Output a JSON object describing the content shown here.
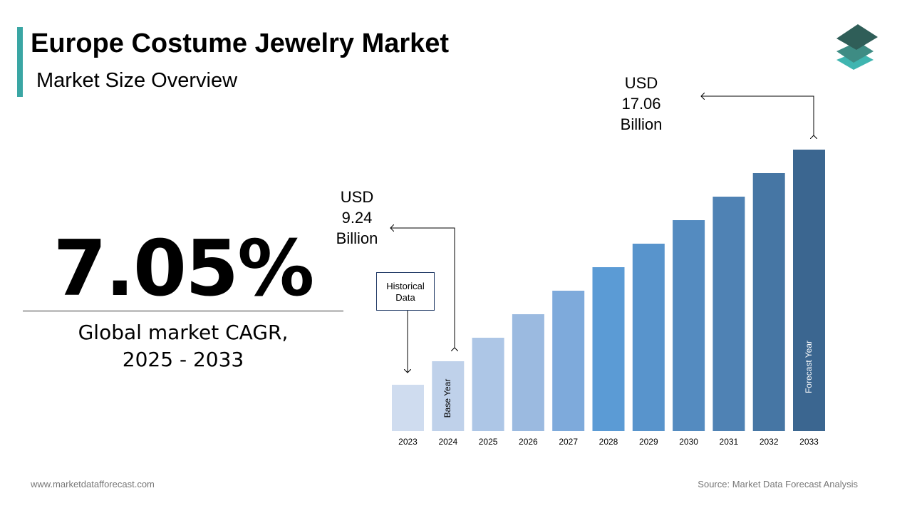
{
  "header": {
    "title": "Europe Costume Jewelry Market",
    "subtitle": "Market Size Overview"
  },
  "kpi": {
    "value": "7.05%",
    "caption_line1": "Global market CAGR,",
    "caption_line2": "2025 - 2033"
  },
  "annotations": {
    "start": {
      "l1": "USD",
      "l2": "9.24",
      "l3": "Billion"
    },
    "end": {
      "l1": "USD",
      "l2": "17.06",
      "l3": "Billion"
    },
    "historical": {
      "l1": "Historical",
      "l2": "Data"
    },
    "base_year": "Base Year",
    "forecast_year": "Forecast Year"
  },
  "footer": {
    "website": "www.marketdatafforecast.com",
    "source": "Source: Market Data Forecast Analysis"
  },
  "colors": {
    "accent": "#3aa6a4",
    "bars": [
      "#cfdcef",
      "#bfd1ea",
      "#adc6e6",
      "#9bbae0",
      "#7eaadb",
      "#5b9bd5",
      "#5894cc",
      "#548bc0",
      "#4f82b4",
      "#4676a4",
      "#3b6690"
    ]
  },
  "chart_data": {
    "type": "bar",
    "title": "",
    "xlabel": "",
    "ylabel": "",
    "categories": [
      "2023",
      "2024",
      "2025",
      "2026",
      "2027",
      "2028",
      "2029",
      "2030",
      "2031",
      "2032",
      "2033"
    ],
    "values": [
      null,
      9.24,
      null,
      null,
      null,
      null,
      null,
      null,
      null,
      null,
      17.06
    ],
    "unit": "USD Billion",
    "grid": false,
    "legend": "none"
  }
}
